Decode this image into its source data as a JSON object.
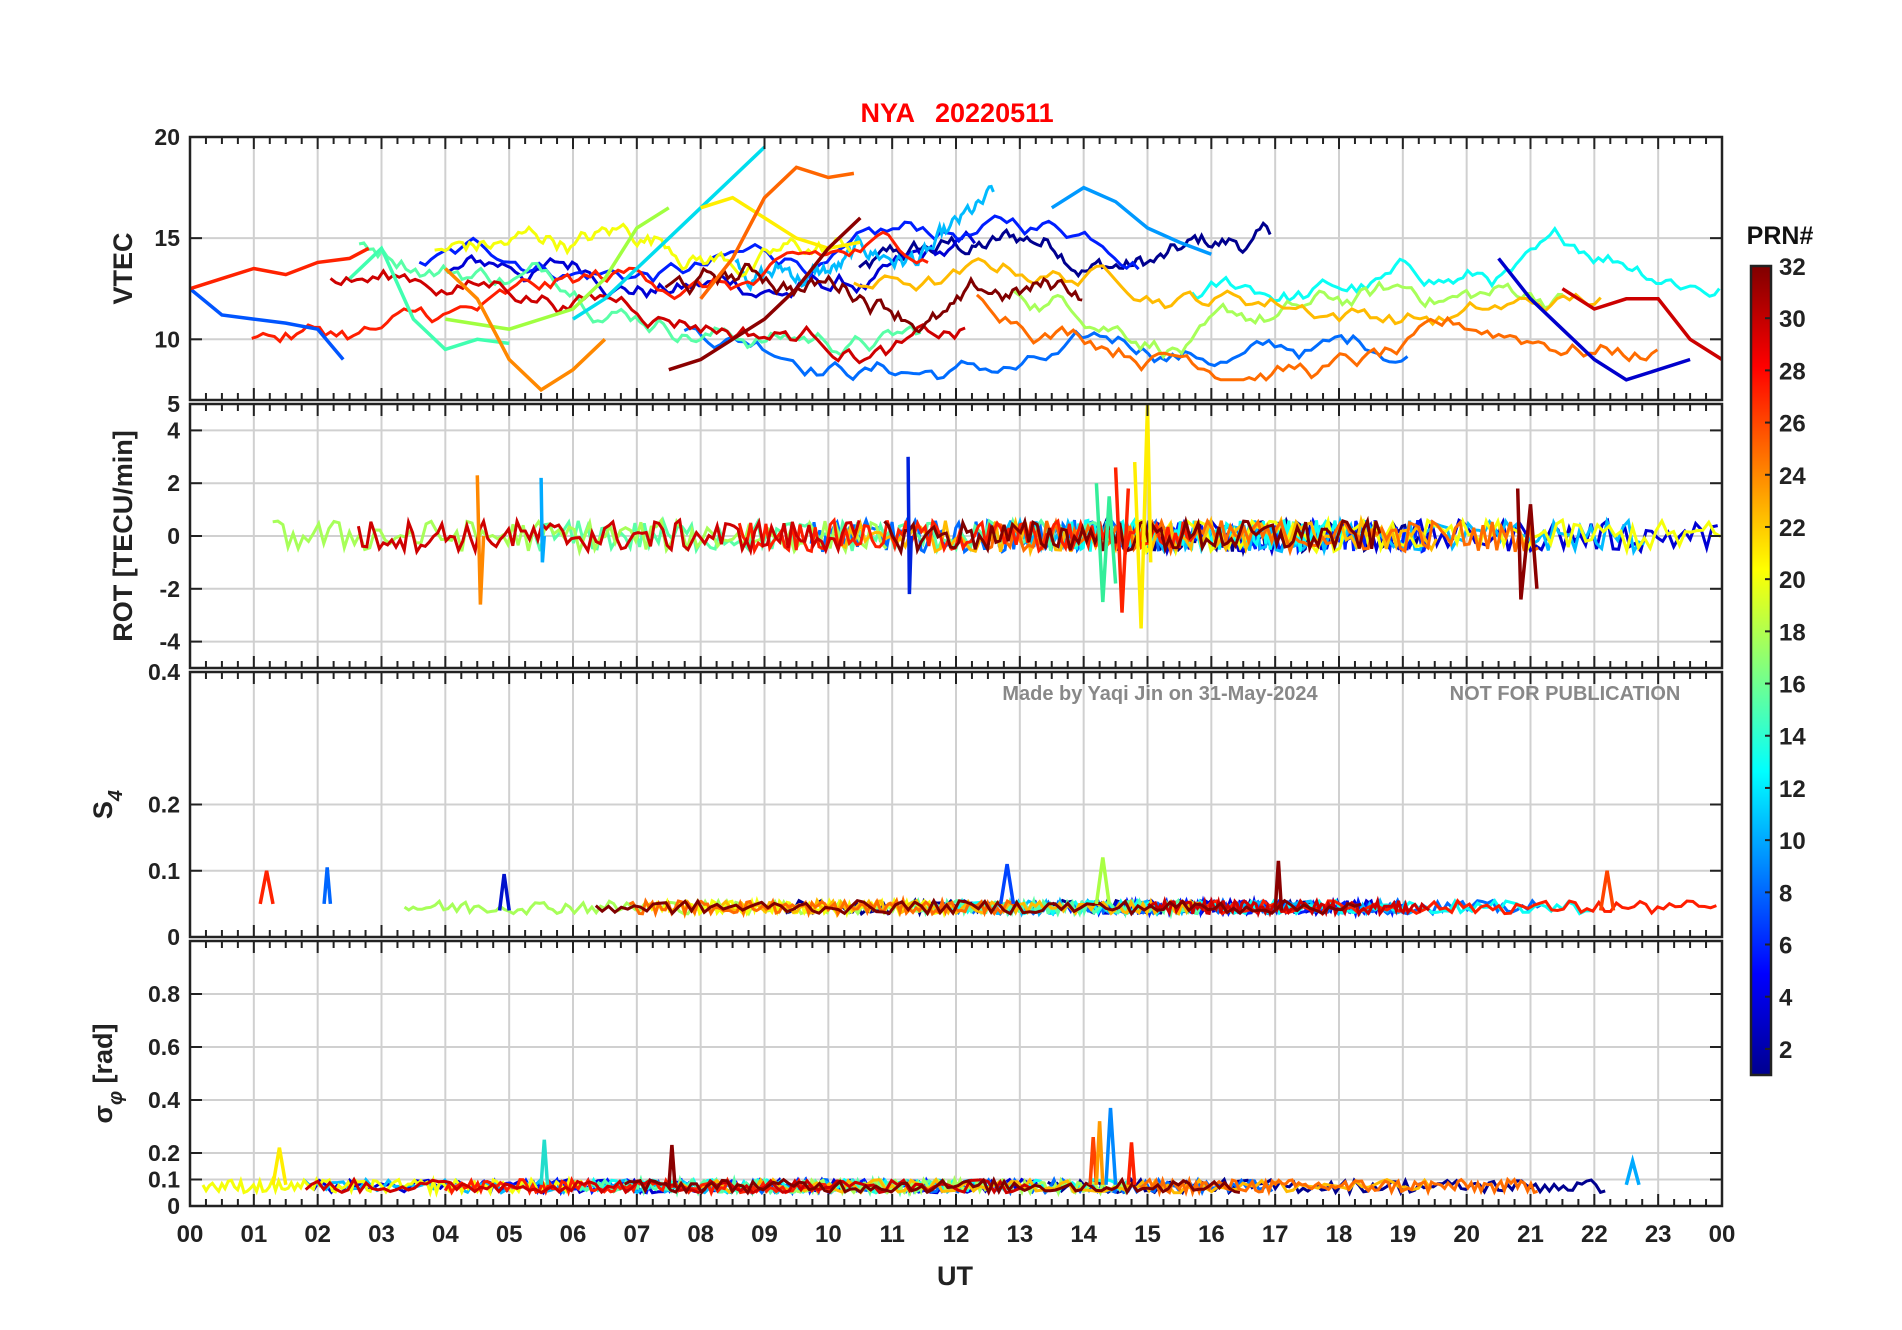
{
  "figure": {
    "title_station": "NYA",
    "title_date": "20220511",
    "title_color": "#ff0000",
    "watermark_left": "Made by Yaqi Jin on 31-May-2024",
    "watermark_right": "NOT FOR PUBLICATION",
    "watermark_color": "#888888"
  },
  "chart_data": [
    {
      "type": "line",
      "id": "vtec",
      "ylabel": "VTEC",
      "ylim": [
        7,
        20
      ],
      "yticks": [
        10,
        15,
        20
      ],
      "x_range": [
        0,
        24
      ],
      "grid": true,
      "series": [
        {
          "prn": 3,
          "color": "#0000cc",
          "x": [
            20.5,
            21.0,
            21.5,
            22.0,
            22.5,
            23.0,
            23.5
          ],
          "values": [
            14.0,
            12.0,
            10.5,
            9.0,
            8.0,
            8.5,
            9.0
          ]
        },
        {
          "prn": 7,
          "color": "#0055ff",
          "x": [
            0.0,
            0.5,
            1.0,
            1.5,
            2.0,
            2.4
          ],
          "values": [
            12.5,
            11.2,
            11.0,
            10.8,
            10.5,
            9.0
          ]
        },
        {
          "prn": 9,
          "color": "#0099ff",
          "x": [
            13.5,
            14.0,
            14.5,
            15.0,
            15.5,
            16.0
          ],
          "values": [
            16.5,
            17.5,
            16.8,
            15.5,
            14.8,
            14.2
          ]
        },
        {
          "prn": 13,
          "color": "#00ddee",
          "x": [
            6.0,
            6.5,
            7.0,
            7.5,
            8.0,
            8.5,
            9.0
          ],
          "values": [
            11.0,
            12.0,
            13.5,
            15.0,
            16.5,
            18.0,
            19.5
          ]
        },
        {
          "prn": 15,
          "color": "#40ffb0",
          "x": [
            2.5,
            3.0,
            3.5,
            4.0,
            4.5,
            5.0
          ],
          "values": [
            13.0,
            14.5,
            11.0,
            9.5,
            10.0,
            9.8
          ]
        },
        {
          "prn": 18,
          "color": "#a0ff40",
          "x": [
            4.0,
            5.0,
            6.0,
            6.5,
            7.0,
            7.5
          ],
          "values": [
            11.0,
            10.5,
            11.5,
            13.0,
            15.5,
            16.5
          ]
        },
        {
          "prn": 21,
          "color": "#ffee00",
          "x": [
            8.0,
            8.5,
            9.0,
            9.5,
            10.0,
            10.5
          ],
          "values": [
            16.5,
            17.0,
            16.0,
            15.0,
            14.5,
            14.8
          ]
        },
        {
          "prn": 24,
          "color": "#ff8800",
          "x": [
            4.0,
            4.5,
            5.0,
            5.5,
            6.0,
            6.5
          ],
          "values": [
            13.5,
            12.0,
            9.0,
            7.5,
            8.5,
            10.0
          ]
        },
        {
          "prn": 25,
          "color": "#ff6600",
          "x": [
            8.0,
            8.5,
            9.0,
            9.5,
            10.0,
            10.4
          ],
          "values": [
            12.0,
            14.0,
            17.0,
            18.5,
            18.0,
            18.2
          ]
        },
        {
          "prn": 28,
          "color": "#ff2200",
          "x": [
            0.0,
            0.5,
            1.0,
            1.5,
            2.0,
            2.5,
            2.8
          ],
          "values": [
            12.5,
            13.0,
            13.5,
            13.2,
            13.8,
            14.0,
            14.5
          ]
        },
        {
          "prn": 30,
          "color": "#cc0000",
          "x": [
            21.5,
            22.0,
            22.5,
            23.0,
            23.5,
            24.0
          ],
          "values": [
            12.5,
            11.5,
            12.0,
            12.0,
            10.0,
            9.0
          ]
        },
        {
          "prn": 32,
          "color": "#8b0000",
          "x": [
            7.5,
            8.0,
            8.5,
            9.0,
            9.5,
            10.0,
            10.5
          ],
          "values": [
            8.5,
            9.0,
            10.0,
            11.0,
            12.5,
            14.5,
            16.0
          ]
        }
      ]
    },
    {
      "type": "line",
      "id": "rot",
      "ylabel": "ROT [TECU/min]",
      "ylim": [
        -5,
        5
      ],
      "yticks": [
        -4,
        -2,
        0,
        2,
        4
      ],
      "top_tick_label": "5",
      "x_range": [
        0,
        24
      ],
      "grid": true,
      "series": [
        {
          "prn": 6,
          "color": "#0022dd",
          "x": [
            11.25,
            11.27,
            11.3
          ],
          "values": [
            3.0,
            -2.2,
            0.0
          ]
        },
        {
          "prn": 11,
          "color": "#00aaff",
          "x": [
            5.5,
            5.52,
            5.55
          ],
          "values": [
            2.2,
            -1.0,
            0.0
          ]
        },
        {
          "prn": 16,
          "color": "#33ee99",
          "x": [
            14.2,
            14.3,
            14.4,
            14.5
          ],
          "values": [
            2.0,
            -2.5,
            1.5,
            -1.8
          ]
        },
        {
          "prn": 20,
          "color": "#ffee00",
          "x": [
            14.8,
            14.9,
            15.0,
            15.05
          ],
          "values": [
            2.8,
            -3.5,
            5.0,
            -1.0
          ]
        },
        {
          "prn": 24,
          "color": "#ff8800",
          "x": [
            4.5,
            4.55,
            4.6
          ],
          "values": [
            2.3,
            -2.6,
            0.0
          ]
        },
        {
          "prn": 28,
          "color": "#ff2200",
          "x": [
            14.5,
            14.6,
            14.7
          ],
          "values": [
            2.6,
            -2.9,
            1.8
          ]
        },
        {
          "prn": 32,
          "color": "#8b0000",
          "x": [
            20.8,
            20.85,
            21.0,
            21.1
          ],
          "values": [
            1.8,
            -2.4,
            1.2,
            -2.0
          ]
        }
      ]
    },
    {
      "type": "line",
      "id": "s4",
      "ylabel": "S",
      "ylabel_sub": "4",
      "ylim": [
        0,
        0.4
      ],
      "yticks": [
        0,
        0.1,
        0.2
      ],
      "top_tick_label": "0.4",
      "x_range": [
        0,
        24
      ],
      "grid": true,
      "series": [
        {
          "prn": 28,
          "color": "#ff2200",
          "x": [
            1.1,
            1.2,
            1.3
          ],
          "values": [
            0.05,
            0.1,
            0.05
          ]
        },
        {
          "prn": 8,
          "color": "#0066ff",
          "x": [
            2.1,
            2.15,
            2.2
          ],
          "values": [
            0.05,
            0.105,
            0.05
          ]
        },
        {
          "prn": 5,
          "color": "#0011cc",
          "x": [
            4.85,
            4.92,
            5.0
          ],
          "values": [
            0.04,
            0.095,
            0.04
          ]
        },
        {
          "prn": 7,
          "color": "#0044ff",
          "x": [
            12.7,
            12.8,
            12.9
          ],
          "values": [
            0.05,
            0.11,
            0.05
          ]
        },
        {
          "prn": 17,
          "color": "#aaff44",
          "x": [
            14.2,
            14.3,
            14.4
          ],
          "values": [
            0.05,
            0.12,
            0.05
          ]
        },
        {
          "prn": 32,
          "color": "#8b0000",
          "x": [
            17.0,
            17.05,
            17.1
          ],
          "values": [
            0.04,
            0.115,
            0.04
          ]
        },
        {
          "prn": 26,
          "color": "#ff4400",
          "x": [
            22.1,
            22.2,
            22.3
          ],
          "values": [
            0.04,
            0.1,
            0.04
          ]
        }
      ]
    },
    {
      "type": "line",
      "id": "sigma_phi",
      "ylabel": "σ",
      "ylabel_sub": "φ",
      "ylabel_unit": "[rad]",
      "ylim": [
        0,
        1
      ],
      "yticks": [
        0,
        0.1,
        0.2,
        0.4,
        0.6,
        0.8
      ],
      "x_range": [
        0,
        24
      ],
      "grid": true,
      "series": [
        {
          "prn": 20,
          "color": "#ffee00",
          "x": [
            1.3,
            1.4,
            1.5
          ],
          "values": [
            0.08,
            0.22,
            0.08
          ]
        },
        {
          "prn": 14,
          "color": "#22ddcc",
          "x": [
            5.5,
            5.55,
            5.6
          ],
          "values": [
            0.08,
            0.25,
            0.08
          ]
        },
        {
          "prn": 32,
          "color": "#8b0000",
          "x": [
            7.5,
            7.55,
            7.6
          ],
          "values": [
            0.07,
            0.23,
            0.07
          ]
        },
        {
          "prn": 26,
          "color": "#ff4400",
          "x": [
            14.1,
            14.15,
            14.2
          ],
          "values": [
            0.08,
            0.26,
            0.08
          ]
        },
        {
          "prn": 9,
          "color": "#0088ff",
          "x": [
            14.35,
            14.42,
            14.5
          ],
          "values": [
            0.08,
            0.37,
            0.08
          ]
        },
        {
          "prn": 23,
          "color": "#ff9900",
          "x": [
            14.2,
            14.25,
            14.3
          ],
          "values": [
            0.08,
            0.32,
            0.08
          ]
        },
        {
          "prn": 28,
          "color": "#ff2200",
          "x": [
            14.7,
            14.75,
            14.8
          ],
          "values": [
            0.08,
            0.24,
            0.08
          ]
        },
        {
          "prn": 10,
          "color": "#00aaff",
          "x": [
            22.5,
            22.6,
            22.7
          ],
          "values": [
            0.08,
            0.17,
            0.08
          ]
        }
      ]
    }
  ],
  "x_axis": {
    "label": "UT",
    "tick_labels": [
      "00",
      "01",
      "02",
      "03",
      "04",
      "05",
      "06",
      "07",
      "08",
      "09",
      "10",
      "11",
      "12",
      "13",
      "14",
      "15",
      "16",
      "17",
      "18",
      "19",
      "20",
      "21",
      "22",
      "23",
      "00"
    ]
  },
  "colorbar": {
    "title": "PRN#",
    "range": [
      1,
      32
    ],
    "tick_labels": [
      "2",
      "4",
      "6",
      "8",
      "10",
      "12",
      "14",
      "16",
      "18",
      "20",
      "22",
      "24",
      "26",
      "28",
      "30",
      "32"
    ],
    "tick_values": [
      2,
      4,
      6,
      8,
      10,
      12,
      14,
      16,
      18,
      20,
      22,
      24,
      26,
      28,
      30,
      32
    ],
    "colormap": [
      "#00008f",
      "#0000ff",
      "#0080ff",
      "#00ffff",
      "#80ff80",
      "#ffff00",
      "#ff8000",
      "#ff0000",
      "#800000"
    ]
  }
}
